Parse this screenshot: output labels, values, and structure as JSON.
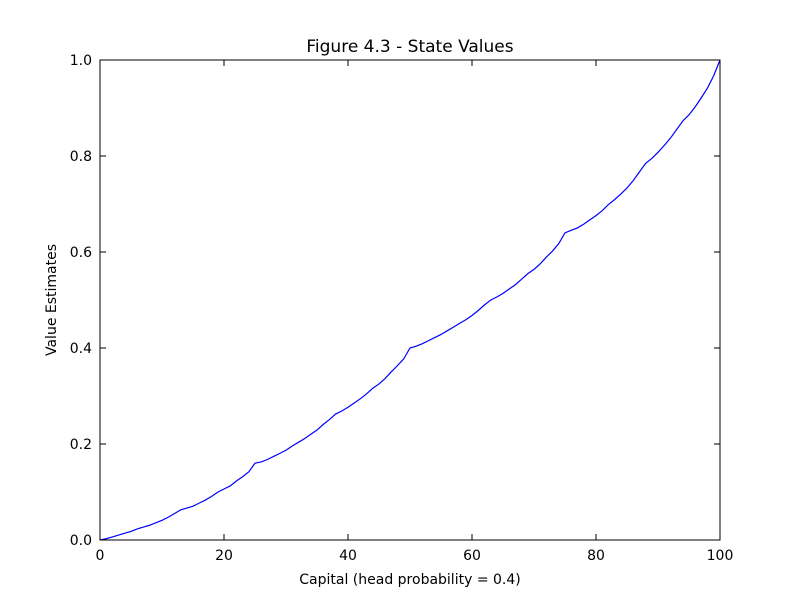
{
  "chart_data": {
    "type": "line",
    "title": "Figure 4.3 - State Values",
    "xlabel": "Capital (head probability = 0.4)",
    "ylabel": "Value Estimates",
    "xlim": [
      0,
      100
    ],
    "ylim": [
      0,
      1.0
    ],
    "grid": false,
    "xticks": [
      0,
      20,
      40,
      60,
      80,
      100
    ],
    "xtick_labels": [
      "0",
      "20",
      "40",
      "60",
      "80",
      "100"
    ],
    "yticks": [
      0.0,
      0.2,
      0.4,
      0.6,
      0.8,
      1.0
    ],
    "ytick_labels": [
      "0.0",
      "0.2",
      "0.4",
      "0.6",
      "0.8",
      "1.0"
    ],
    "series": [
      {
        "color": "#0000ff",
        "x": [
          0,
          1,
          2,
          3,
          4,
          5,
          6,
          7,
          8,
          9,
          10,
          11,
          12,
          13,
          14,
          15,
          16,
          17,
          18,
          19,
          20,
          21,
          22,
          23,
          24,
          25,
          26,
          27,
          28,
          29,
          30,
          31,
          32,
          33,
          34,
          35,
          36,
          37,
          38,
          39,
          40,
          41,
          42,
          43,
          44,
          45,
          46,
          47,
          48,
          49,
          50,
          51,
          52,
          53,
          54,
          55,
          56,
          57,
          58,
          59,
          60,
          61,
          62,
          63,
          64,
          65,
          66,
          67,
          68,
          69,
          70,
          71,
          72,
          73,
          74,
          75,
          76,
          77,
          78,
          79,
          80,
          81,
          82,
          83,
          84,
          85,
          86,
          87,
          88,
          89,
          90,
          91,
          92,
          93,
          94,
          95,
          96,
          97,
          98,
          99,
          100
        ],
        "y": [
          0.0,
          0.0026,
          0.0064,
          0.0102,
          0.0141,
          0.0179,
          0.023,
          0.0269,
          0.0307,
          0.0358,
          0.041,
          0.0474,
          0.055,
          0.0627,
          0.0666,
          0.0704,
          0.0768,
          0.0832,
          0.0909,
          0.0998,
          0.1062,
          0.1126,
          0.1229,
          0.1318,
          0.1421,
          0.16,
          0.1626,
          0.1677,
          0.1741,
          0.1805,
          0.1869,
          0.1958,
          0.2035,
          0.2112,
          0.2202,
          0.2291,
          0.2406,
          0.2509,
          0.2624,
          0.2688,
          0.2765,
          0.2854,
          0.2944,
          0.3046,
          0.3162,
          0.3251,
          0.3366,
          0.3507,
          0.3635,
          0.3776,
          0.4,
          0.4038,
          0.409,
          0.4154,
          0.4218,
          0.4282,
          0.4358,
          0.4435,
          0.4512,
          0.4589,
          0.4678,
          0.4781,
          0.4896,
          0.4998,
          0.5062,
          0.5139,
          0.5229,
          0.5318,
          0.5434,
          0.5549,
          0.5638,
          0.5754,
          0.5894,
          0.6022,
          0.6176,
          0.64,
          0.6451,
          0.6502,
          0.6579,
          0.6669,
          0.6758,
          0.6861,
          0.6989,
          0.7091,
          0.7206,
          0.7334,
          0.7488,
          0.7667,
          0.7846,
          0.7949,
          0.8077,
          0.8218,
          0.8371,
          0.855,
          0.873,
          0.8858,
          0.9024,
          0.9216,
          0.9421,
          0.9677,
          1.0
        ]
      }
    ]
  }
}
